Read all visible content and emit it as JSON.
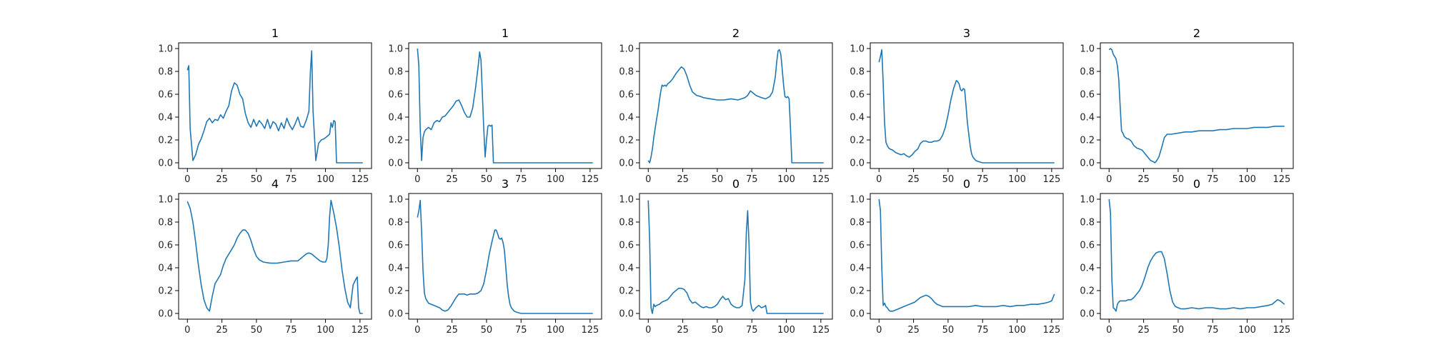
{
  "colors": {
    "line": "#1f77b4",
    "axis": "#000000",
    "background": "#ffffff"
  },
  "chart_data": [
    {
      "type": "line",
      "title": "1",
      "xlim": [
        0,
        127
      ],
      "ylim": [
        0,
        1.0
      ],
      "xticks": [
        0,
        25,
        50,
        75,
        100,
        125
      ],
      "yticks": [
        0.0,
        0.2,
        0.4,
        0.6,
        0.8,
        1.0
      ],
      "x": [
        0,
        1,
        2,
        4,
        6,
        8,
        10,
        12,
        14,
        16,
        18,
        20,
        22,
        24,
        26,
        28,
        30,
        32,
        34,
        36,
        38,
        40,
        42,
        44,
        46,
        48,
        50,
        52,
        54,
        56,
        58,
        60,
        62,
        64,
        66,
        68,
        70,
        72,
        74,
        76,
        78,
        80,
        82,
        84,
        86,
        88,
        89,
        90,
        91,
        93,
        95,
        97,
        99,
        101,
        103,
        104,
        105,
        106,
        107,
        108,
        110,
        112,
        115,
        118,
        122,
        125,
        127
      ],
      "y": [
        0.81,
        0.85,
        0.3,
        0.02,
        0.07,
        0.16,
        0.21,
        0.28,
        0.36,
        0.39,
        0.35,
        0.38,
        0.37,
        0.42,
        0.39,
        0.45,
        0.5,
        0.63,
        0.7,
        0.68,
        0.6,
        0.56,
        0.43,
        0.35,
        0.31,
        0.38,
        0.32,
        0.37,
        0.34,
        0.3,
        0.38,
        0.3,
        0.36,
        0.34,
        0.28,
        0.35,
        0.3,
        0.39,
        0.33,
        0.29,
        0.34,
        0.4,
        0.32,
        0.31,
        0.37,
        0.45,
        0.78,
        0.98,
        0.45,
        0.02,
        0.17,
        0.2,
        0.21,
        0.23,
        0.25,
        0.35,
        0.31,
        0.37,
        0.36,
        0.0,
        0.0,
        0.0,
        0.0,
        0.0,
        0.0,
        0.0,
        0.0
      ]
    },
    {
      "type": "line",
      "title": "1",
      "xlim": [
        0,
        127
      ],
      "ylim": [
        0,
        1.0
      ],
      "xticks": [
        0,
        25,
        50,
        75,
        100,
        125
      ],
      "yticks": [
        0.0,
        0.2,
        0.4,
        0.6,
        0.8,
        1.0
      ],
      "x": [
        0,
        1,
        2,
        3,
        4,
        5,
        6,
        8,
        10,
        12,
        14,
        16,
        18,
        20,
        22,
        24,
        26,
        28,
        30,
        32,
        34,
        36,
        38,
        40,
        42,
        44,
        45,
        46,
        47,
        48,
        49,
        50,
        51,
        52,
        53,
        54,
        55,
        56,
        60,
        70,
        80,
        90,
        100,
        110,
        120,
        127
      ],
      "y": [
        1.0,
        0.85,
        0.3,
        0.02,
        0.22,
        0.27,
        0.29,
        0.31,
        0.29,
        0.35,
        0.37,
        0.36,
        0.4,
        0.41,
        0.44,
        0.47,
        0.5,
        0.54,
        0.55,
        0.5,
        0.44,
        0.4,
        0.4,
        0.48,
        0.65,
        0.85,
        0.97,
        0.9,
        0.6,
        0.3,
        0.05,
        0.2,
        0.32,
        0.33,
        0.32,
        0.33,
        0.0,
        0.0,
        0.0,
        0.0,
        0.0,
        0.0,
        0.0,
        0.0,
        0.0,
        0.0
      ]
    },
    {
      "type": "line",
      "title": "2",
      "xlim": [
        0,
        127
      ],
      "ylim": [
        0,
        1.0
      ],
      "xticks": [
        0,
        25,
        50,
        75,
        100,
        125
      ],
      "yticks": [
        0.0,
        0.2,
        0.4,
        0.6,
        0.8,
        1.0
      ],
      "x": [
        0,
        1,
        2,
        3,
        4,
        5,
        6,
        7,
        8,
        9,
        10,
        11,
        12,
        13,
        14,
        15,
        16,
        18,
        20,
        22,
        24,
        26,
        28,
        30,
        32,
        35,
        38,
        40,
        45,
        50,
        55,
        60,
        65,
        70,
        72,
        74,
        76,
        78,
        80,
        82,
        85,
        88,
        90,
        92,
        93,
        94,
        95,
        96,
        97,
        98,
        99,
        100,
        101,
        102,
        103,
        104,
        105,
        110,
        115,
        120,
        125,
        127
      ],
      "y": [
        0.02,
        0.0,
        0.05,
        0.12,
        0.22,
        0.3,
        0.38,
        0.45,
        0.54,
        0.62,
        0.68,
        0.67,
        0.68,
        0.67,
        0.69,
        0.7,
        0.71,
        0.74,
        0.78,
        0.81,
        0.84,
        0.82,
        0.76,
        0.68,
        0.62,
        0.59,
        0.58,
        0.57,
        0.56,
        0.55,
        0.55,
        0.56,
        0.55,
        0.57,
        0.59,
        0.63,
        0.61,
        0.59,
        0.58,
        0.57,
        0.56,
        0.58,
        0.62,
        0.75,
        0.88,
        0.98,
        0.99,
        0.95,
        0.82,
        0.68,
        0.58,
        0.57,
        0.58,
        0.56,
        0.3,
        0.0,
        0.0,
        0.0,
        0.0,
        0.0,
        0.0,
        0.0
      ]
    },
    {
      "type": "line",
      "title": "3",
      "xlim": [
        0,
        127
      ],
      "ylim": [
        0,
        1.0
      ],
      "xticks": [
        0,
        25,
        50,
        75,
        100,
        125
      ],
      "yticks": [
        0.0,
        0.2,
        0.4,
        0.6,
        0.8,
        1.0
      ],
      "x": [
        0,
        1,
        2,
        3,
        4,
        5,
        6,
        7,
        8,
        10,
        12,
        14,
        16,
        18,
        20,
        22,
        24,
        26,
        28,
        30,
        32,
        34,
        36,
        38,
        40,
        42,
        44,
        46,
        48,
        50,
        52,
        54,
        56,
        57,
        58,
        59,
        60,
        61,
        62,
        63,
        64,
        65,
        66,
        67,
        68,
        70,
        72,
        75,
        80,
        90,
        100,
        110,
        120,
        127
      ],
      "y": [
        0.88,
        0.93,
        0.99,
        0.7,
        0.35,
        0.18,
        0.15,
        0.13,
        0.12,
        0.11,
        0.09,
        0.08,
        0.07,
        0.08,
        0.06,
        0.05,
        0.07,
        0.1,
        0.12,
        0.17,
        0.19,
        0.19,
        0.18,
        0.18,
        0.19,
        0.19,
        0.2,
        0.24,
        0.31,
        0.42,
        0.55,
        0.65,
        0.72,
        0.71,
        0.69,
        0.64,
        0.63,
        0.65,
        0.64,
        0.5,
        0.35,
        0.25,
        0.15,
        0.08,
        0.05,
        0.02,
        0.01,
        0.0,
        0.0,
        0.0,
        0.0,
        0.0,
        0.0,
        0.0
      ]
    },
    {
      "type": "line",
      "title": "2",
      "xlim": [
        0,
        127
      ],
      "ylim": [
        0,
        1.0
      ],
      "xticks": [
        0,
        25,
        50,
        75,
        100,
        125
      ],
      "yticks": [
        0.0,
        0.2,
        0.4,
        0.6,
        0.8,
        1.0
      ],
      "x": [
        0,
        1,
        2,
        3,
        4,
        5,
        6,
        7,
        8,
        9,
        10,
        11,
        12,
        13,
        14,
        15,
        16,
        18,
        20,
        22,
        24,
        26,
        28,
        30,
        32,
        33,
        34,
        35,
        36,
        38,
        40,
        42,
        45,
        50,
        55,
        60,
        65,
        70,
        75,
        80,
        85,
        90,
        95,
        100,
        105,
        110,
        115,
        120,
        125,
        127
      ],
      "y": [
        0.99,
        1.0,
        0.99,
        0.95,
        0.93,
        0.91,
        0.85,
        0.73,
        0.5,
        0.28,
        0.26,
        0.23,
        0.22,
        0.21,
        0.21,
        0.2,
        0.19,
        0.15,
        0.13,
        0.12,
        0.11,
        0.08,
        0.05,
        0.02,
        0.01,
        0.0,
        0.01,
        0.03,
        0.05,
        0.13,
        0.22,
        0.25,
        0.25,
        0.26,
        0.27,
        0.27,
        0.28,
        0.28,
        0.28,
        0.29,
        0.29,
        0.3,
        0.3,
        0.3,
        0.31,
        0.31,
        0.31,
        0.32,
        0.32,
        0.32
      ]
    },
    {
      "type": "line",
      "title": "4",
      "xlim": [
        0,
        127
      ],
      "ylim": [
        0,
        1.0
      ],
      "xticks": [
        0,
        25,
        50,
        75,
        100,
        125
      ],
      "yticks": [
        0.0,
        0.2,
        0.4,
        0.6,
        0.8,
        1.0
      ],
      "x": [
        0,
        2,
        4,
        6,
        8,
        10,
        12,
        14,
        16,
        18,
        20,
        22,
        24,
        26,
        28,
        30,
        32,
        34,
        36,
        38,
        40,
        42,
        44,
        46,
        48,
        50,
        52,
        55,
        60,
        65,
        70,
        75,
        80,
        82,
        84,
        86,
        88,
        90,
        92,
        94,
        96,
        98,
        100,
        101,
        102,
        103,
        104,
        106,
        108,
        110,
        112,
        114,
        116,
        118,
        120,
        122,
        123,
        124,
        125,
        126,
        127
      ],
      "y": [
        0.98,
        0.92,
        0.8,
        0.62,
        0.42,
        0.25,
        0.12,
        0.05,
        0.02,
        0.15,
        0.26,
        0.3,
        0.34,
        0.42,
        0.48,
        0.52,
        0.56,
        0.6,
        0.66,
        0.7,
        0.73,
        0.73,
        0.7,
        0.64,
        0.56,
        0.5,
        0.47,
        0.45,
        0.44,
        0.44,
        0.45,
        0.46,
        0.46,
        0.48,
        0.5,
        0.52,
        0.53,
        0.52,
        0.5,
        0.48,
        0.46,
        0.45,
        0.45,
        0.48,
        0.6,
        0.85,
        0.99,
        0.88,
        0.75,
        0.58,
        0.38,
        0.22,
        0.1,
        0.05,
        0.25,
        0.3,
        0.32,
        0.05,
        0.0,
        0.0,
        0.0
      ]
    },
    {
      "type": "line",
      "title": "3",
      "xlim": [
        0,
        127
      ],
      "ylim": [
        0,
        1.0
      ],
      "xticks": [
        0,
        25,
        50,
        75,
        100,
        125
      ],
      "yticks": [
        0.0,
        0.2,
        0.4,
        0.6,
        0.8,
        1.0
      ],
      "x": [
        0,
        1,
        2,
        3,
        4,
        5,
        6,
        7,
        8,
        10,
        12,
        14,
        16,
        18,
        20,
        22,
        24,
        26,
        28,
        30,
        32,
        34,
        36,
        38,
        40,
        42,
        44,
        46,
        48,
        50,
        52,
        54,
        56,
        57,
        58,
        59,
        60,
        61,
        62,
        63,
        64,
        65,
        66,
        67,
        68,
        70,
        72,
        75,
        80,
        90,
        100,
        110,
        120,
        127
      ],
      "y": [
        0.84,
        0.9,
        0.99,
        0.72,
        0.38,
        0.18,
        0.13,
        0.11,
        0.09,
        0.08,
        0.07,
        0.06,
        0.05,
        0.03,
        0.02,
        0.03,
        0.06,
        0.1,
        0.14,
        0.17,
        0.17,
        0.17,
        0.16,
        0.17,
        0.17,
        0.17,
        0.18,
        0.2,
        0.26,
        0.38,
        0.52,
        0.63,
        0.73,
        0.73,
        0.7,
        0.66,
        0.65,
        0.66,
        0.62,
        0.55,
        0.4,
        0.25,
        0.15,
        0.08,
        0.05,
        0.02,
        0.01,
        0.0,
        0.0,
        0.0,
        0.0,
        0.0,
        0.0,
        0.0
      ]
    },
    {
      "type": "line",
      "title": "0",
      "xlim": [
        0,
        127
      ],
      "ylim": [
        0,
        1.0
      ],
      "xticks": [
        0,
        25,
        50,
        75,
        100,
        125
      ],
      "yticks": [
        0.0,
        0.2,
        0.4,
        0.6,
        0.8,
        1.0
      ],
      "x": [
        0,
        1,
        2,
        3,
        4,
        5,
        6,
        8,
        10,
        12,
        14,
        16,
        18,
        20,
        22,
        24,
        26,
        28,
        30,
        32,
        34,
        36,
        38,
        40,
        42,
        44,
        46,
        48,
        50,
        52,
        54,
        56,
        58,
        60,
        62,
        64,
        66,
        68,
        70,
        71,
        72,
        73,
        74,
        75,
        76,
        78,
        80,
        82,
        84,
        85,
        86,
        90,
        100,
        110,
        120,
        127
      ],
      "y": [
        0.99,
        0.65,
        0.05,
        0.0,
        0.08,
        0.06,
        0.07,
        0.08,
        0.1,
        0.11,
        0.12,
        0.15,
        0.18,
        0.2,
        0.22,
        0.22,
        0.21,
        0.18,
        0.12,
        0.09,
        0.1,
        0.08,
        0.06,
        0.05,
        0.06,
        0.05,
        0.05,
        0.06,
        0.08,
        0.12,
        0.15,
        0.12,
        0.13,
        0.08,
        0.06,
        0.05,
        0.05,
        0.07,
        0.3,
        0.7,
        0.9,
        0.6,
        0.1,
        0.04,
        0.02,
        0.05,
        0.07,
        0.05,
        0.06,
        0.07,
        0.0,
        0.0,
        0.0,
        0.0,
        0.0,
        0.0
      ]
    },
    {
      "type": "line",
      "title": "0",
      "xlim": [
        0,
        127
      ],
      "ylim": [
        0,
        1.0
      ],
      "xticks": [
        0,
        25,
        50,
        75,
        100,
        125
      ],
      "yticks": [
        0.0,
        0.2,
        0.4,
        0.6,
        0.8,
        1.0
      ],
      "x": [
        0,
        1,
        2,
        3,
        4,
        5,
        6,
        7,
        8,
        10,
        12,
        14,
        16,
        18,
        20,
        22,
        24,
        26,
        28,
        30,
        32,
        34,
        36,
        38,
        40,
        42,
        44,
        46,
        48,
        50,
        55,
        60,
        65,
        70,
        75,
        80,
        85,
        90,
        95,
        100,
        105,
        110,
        115,
        120,
        123,
        125,
        126,
        127
      ],
      "y": [
        1.0,
        0.9,
        0.4,
        0.07,
        0.09,
        0.06,
        0.05,
        0.03,
        0.02,
        0.02,
        0.03,
        0.04,
        0.05,
        0.06,
        0.07,
        0.08,
        0.09,
        0.1,
        0.12,
        0.14,
        0.15,
        0.16,
        0.15,
        0.13,
        0.1,
        0.08,
        0.07,
        0.06,
        0.06,
        0.06,
        0.06,
        0.06,
        0.06,
        0.07,
        0.06,
        0.06,
        0.06,
        0.07,
        0.06,
        0.07,
        0.07,
        0.08,
        0.08,
        0.09,
        0.1,
        0.11,
        0.14,
        0.17
      ]
    },
    {
      "type": "line",
      "title": "0",
      "xlim": [
        0,
        127
      ],
      "ylim": [
        0,
        1.0
      ],
      "xticks": [
        0,
        25,
        50,
        75,
        100,
        125
      ],
      "yticks": [
        0.0,
        0.2,
        0.4,
        0.6,
        0.8,
        1.0
      ],
      "x": [
        0,
        1,
        2,
        3,
        4,
        5,
        6,
        7,
        8,
        10,
        12,
        14,
        16,
        18,
        20,
        22,
        24,
        26,
        28,
        30,
        32,
        34,
        36,
        38,
        40,
        42,
        44,
        46,
        48,
        50,
        52,
        55,
        60,
        65,
        70,
        75,
        80,
        85,
        90,
        95,
        100,
        105,
        110,
        115,
        118,
        120,
        122,
        124,
        126,
        127
      ],
      "y": [
        1.0,
        0.88,
        0.3,
        0.05,
        0.04,
        0.02,
        0.08,
        0.1,
        0.11,
        0.11,
        0.11,
        0.12,
        0.12,
        0.14,
        0.17,
        0.2,
        0.25,
        0.32,
        0.4,
        0.46,
        0.5,
        0.53,
        0.54,
        0.54,
        0.48,
        0.35,
        0.2,
        0.1,
        0.06,
        0.05,
        0.04,
        0.04,
        0.05,
        0.04,
        0.05,
        0.05,
        0.04,
        0.04,
        0.05,
        0.04,
        0.05,
        0.05,
        0.06,
        0.07,
        0.08,
        0.1,
        0.12,
        0.11,
        0.09,
        0.08
      ]
    }
  ]
}
